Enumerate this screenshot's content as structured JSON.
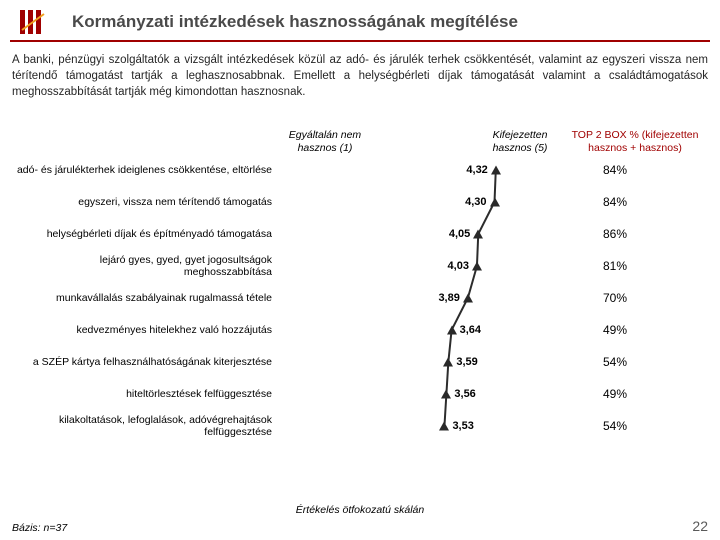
{
  "title": "Kormányzati intézkedések hasznosságának megítélése",
  "intro": "A banki, pénzügyi szolgáltatók a vizsgált intézkedések közül az adó- és járulék terhek csökkentését, valamint az egyszeri vissza nem térítendő támogatást tartják a leghasznosabbnak. Emellett a helységbérleti díjak támogatását valamint a családtámogatások meghosszabbítását tartják még kimondottan hasznosnak.",
  "leftHeader": "Egyáltalán nem hasznos (1)",
  "rightHeader": "Kifejezetten hasznos (5)",
  "top2Header": "TOP 2 BOX % (kifejezetten hasznos + hasznos)",
  "xlim": [
    1,
    5
  ],
  "plotWidthPx": 260,
  "rowHeightPx": 32,
  "rows": [
    {
      "label": "adó- és járulékterhek ideiglenes csökkentése, eltörlése",
      "value": 4.32,
      "valueText": "4,32",
      "top2": "84%"
    },
    {
      "label": "egyszeri, vissza nem térítendő támogatás",
      "value": 4.3,
      "valueText": "4,30",
      "top2": "84%"
    },
    {
      "label": "helységbérleti díjak és építményadó támogatása",
      "value": 4.05,
      "valueText": "4,05",
      "top2": "86%"
    },
    {
      "label": "lejáró gyes, gyed, gyet jogosultságok meghosszabbítása",
      "value": 4.03,
      "valueText": "4,03",
      "top2": "81%"
    },
    {
      "label": "munkavállalás szabályainak rugalmassá tétele",
      "value": 3.89,
      "valueText": "3,89",
      "top2": "70%"
    },
    {
      "label": "kedvezményes hitelekhez való hozzájutás",
      "value": 3.64,
      "valueText": "3,64",
      "top2": "49%"
    },
    {
      "label": "a SZÉP kártya felhasználhatóságának kiterjesztése",
      "value": 3.59,
      "valueText": "3,59",
      "top2": "54%"
    },
    {
      "label": "hiteltörlesztések felfüggesztése",
      "value": 3.56,
      "valueText": "3,56",
      "top2": "49%"
    },
    {
      "label": "kilakoltatások, lefoglalások, adóvégrehajtások felfüggesztése",
      "value": 3.53,
      "valueText": "3,53",
      "top2": "54%"
    }
  ],
  "footnote": "Értékelés ötfokozatú skálán",
  "basis": "Bázis: n=37",
  "pageNumber": "22",
  "colors": {
    "accent": "#a00000",
    "marker": "#292929",
    "line": "#2c2c2c"
  }
}
